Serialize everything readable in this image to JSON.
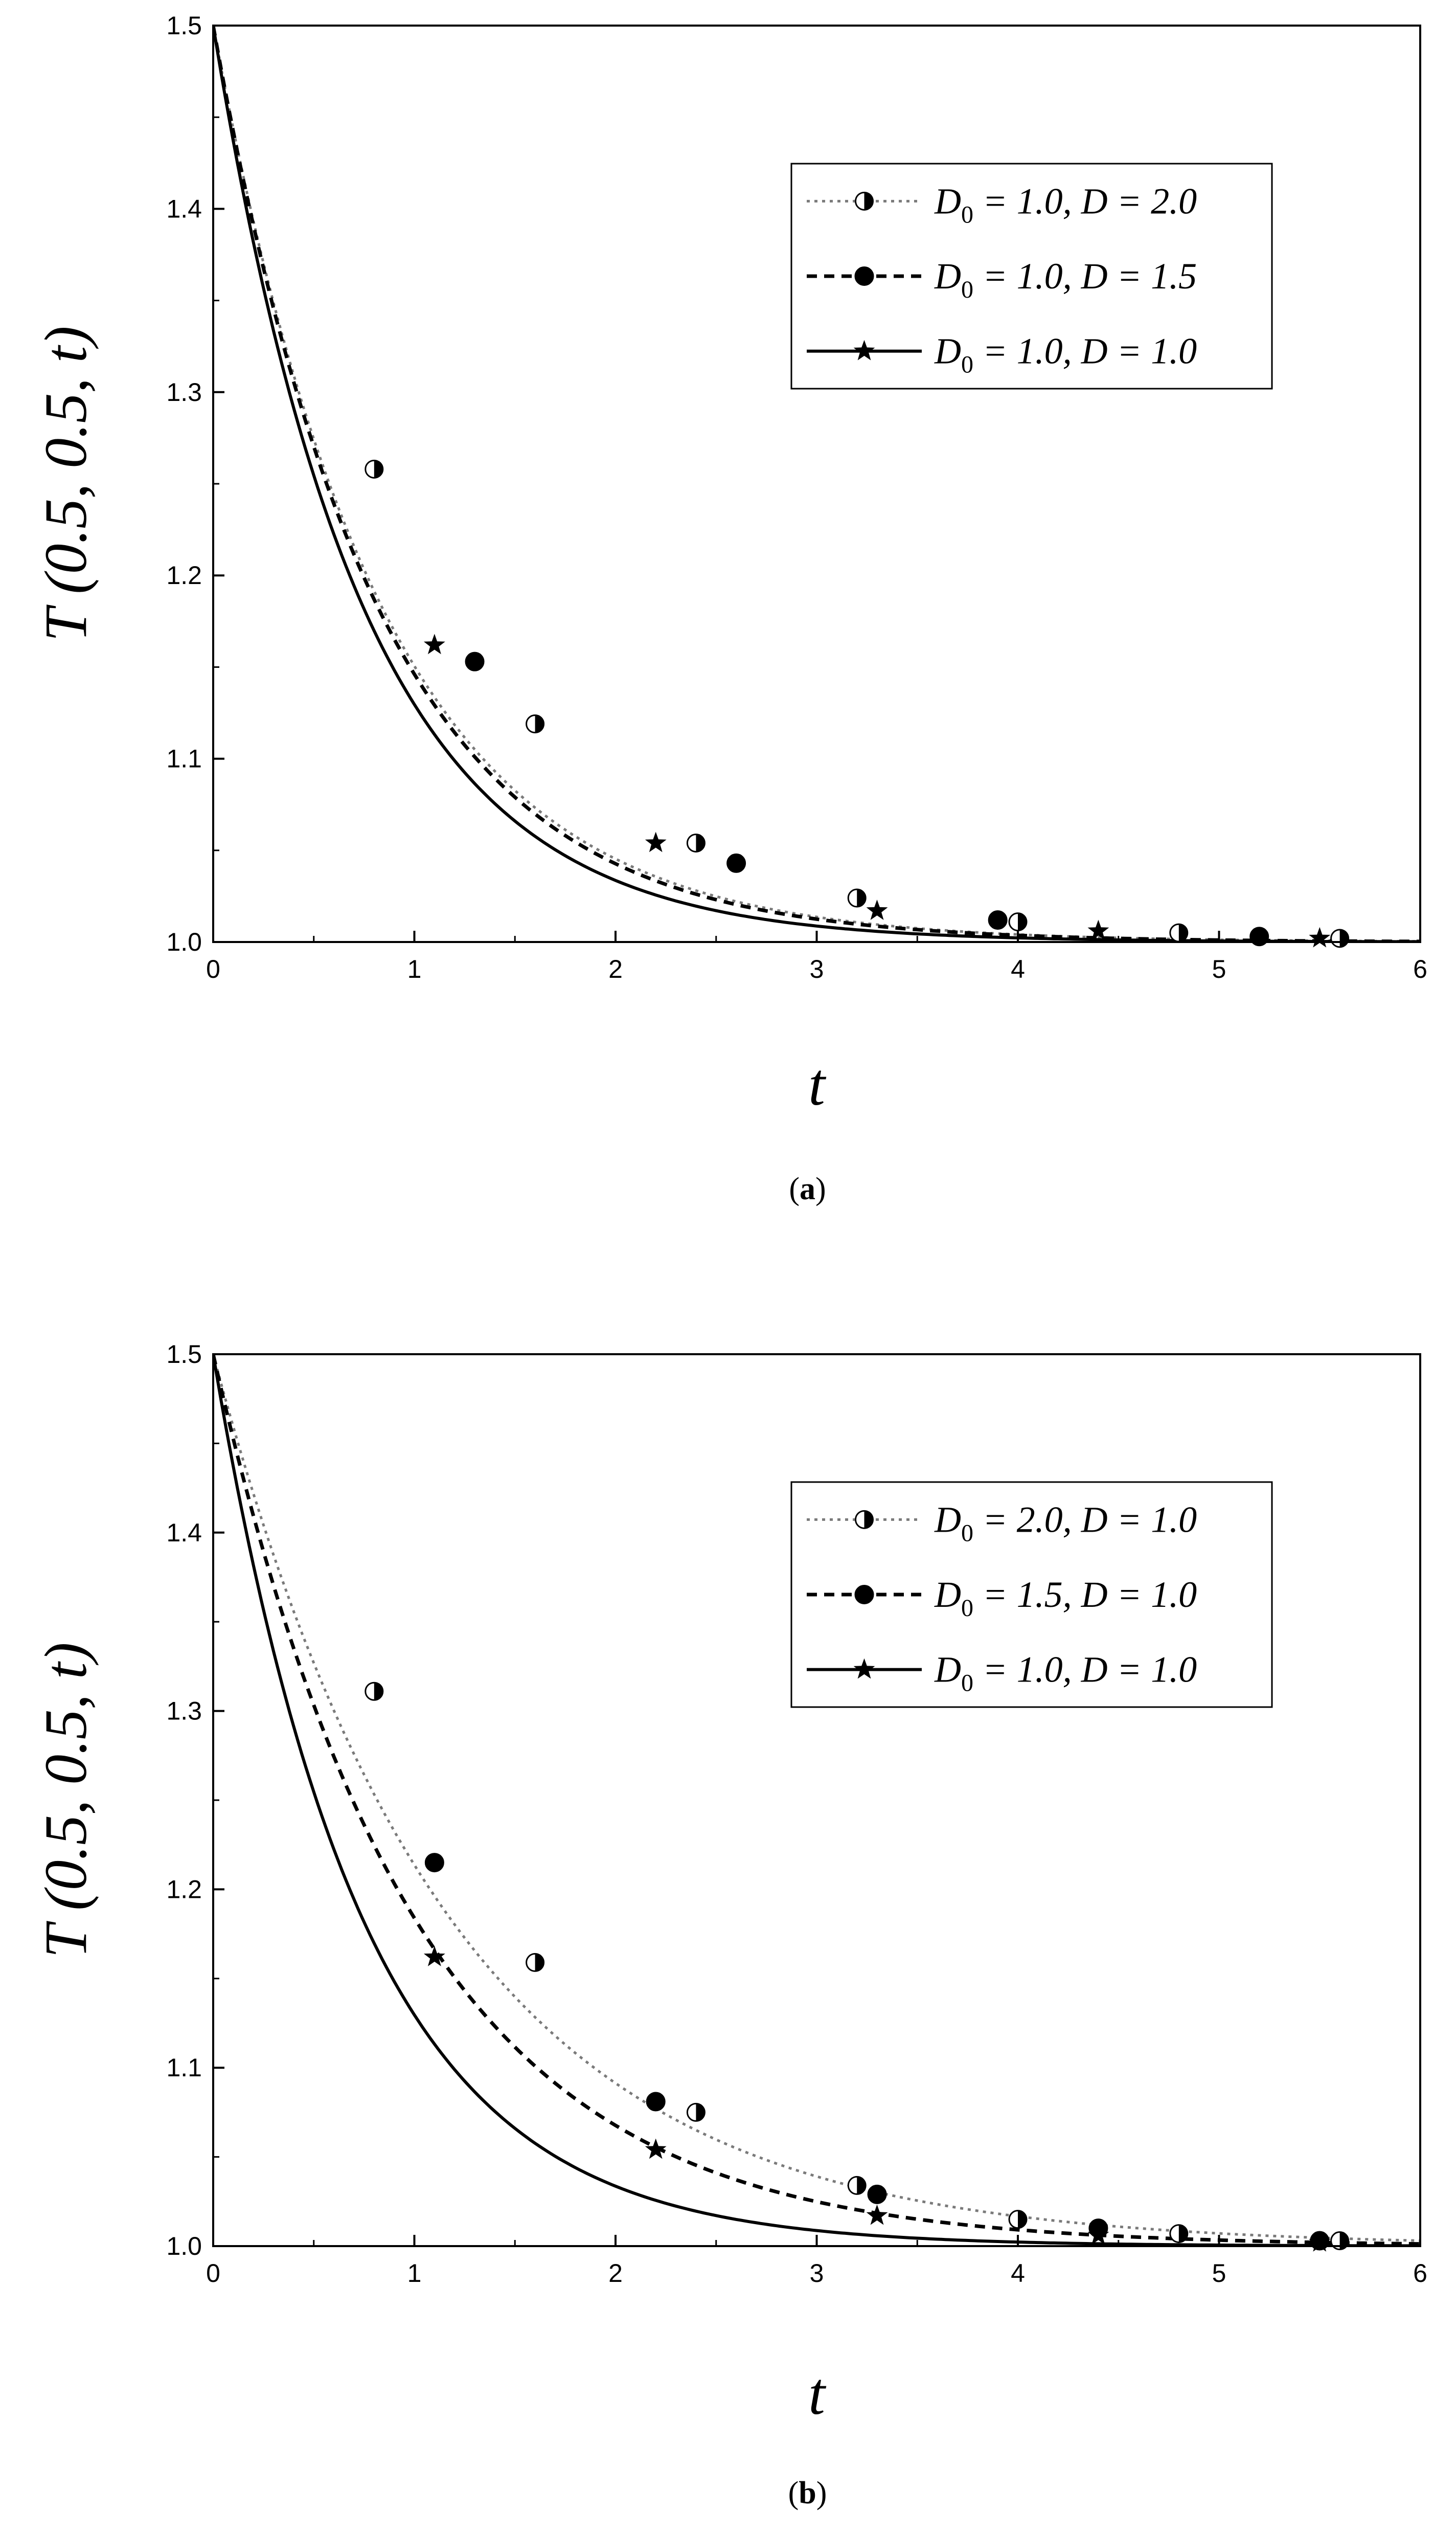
{
  "chart_data": [
    {
      "type": "line",
      "panel_label": "(a)",
      "xlabel": "t",
      "ylabel": "T (0.5, 0.5, t)",
      "xlim": [
        0,
        6
      ],
      "ylim": [
        1.0,
        1.5
      ],
      "xticks": [
        "0",
        "1",
        "2",
        "3",
        "4",
        "5",
        "6"
      ],
      "yticks": [
        "1.0",
        "1.1",
        "1.2",
        "1.3",
        "1.4",
        "1.5"
      ],
      "grid": false,
      "legend_position": "top-right",
      "series": [
        {
          "name": "D0 = 1.0, D = 2.0",
          "legend": {
            "pre": "D",
            "sub": "0",
            "post": " = 1.0, D = 2.0"
          },
          "line_style": "dotted",
          "marker": "half-circle",
          "color": "#7a7a7a",
          "decay_rate": 1.2,
          "markers": [
            {
              "x": 0.8,
              "y": 1.258
            },
            {
              "x": 1.6,
              "y": 1.119
            },
            {
              "x": 2.4,
              "y": 1.054
            },
            {
              "x": 3.2,
              "y": 1.024
            },
            {
              "x": 4.0,
              "y": 1.011
            },
            {
              "x": 4.8,
              "y": 1.005
            },
            {
              "x": 5.6,
              "y": 1.002
            }
          ]
        },
        {
          "name": "D0 = 1.0, D = 1.5",
          "legend": {
            "pre": "D",
            "sub": "0",
            "post": " = 1.0, D = 1.5"
          },
          "line_style": "dashed",
          "marker": "filled-circle",
          "color": "#000000",
          "decay_rate": 1.23,
          "markers": [
            {
              "x": 1.3,
              "y": 1.153
            },
            {
              "x": 2.6,
              "y": 1.043
            },
            {
              "x": 3.9,
              "y": 1.012
            },
            {
              "x": 5.2,
              "y": 1.003
            }
          ]
        },
        {
          "name": "D0 = 1.0, D = 1.0",
          "legend": {
            "pre": "D",
            "sub": "0",
            "post": " = 1.0, D = 1.0"
          },
          "line_style": "solid",
          "marker": "star",
          "color": "#000000",
          "decay_rate": 1.35,
          "markers": [
            {
              "x": 1.1,
              "y": 1.162
            },
            {
              "x": 2.2,
              "y": 1.054
            },
            {
              "x": 3.3,
              "y": 1.017
            },
            {
              "x": 4.4,
              "y": 1.006
            },
            {
              "x": 5.5,
              "y": 1.002
            }
          ]
        }
      ]
    },
    {
      "type": "line",
      "panel_label": "(b)",
      "xlabel": "t",
      "ylabel": "T (0.5, 0.5, t)",
      "xlim": [
        0,
        6
      ],
      "ylim": [
        1.0,
        1.5
      ],
      "xticks": [
        "0",
        "1",
        "2",
        "3",
        "4",
        "5",
        "6"
      ],
      "yticks": [
        "1.0",
        "1.1",
        "1.2",
        "1.3",
        "1.4",
        "1.5"
      ],
      "grid": false,
      "legend_position": "top-right",
      "series": [
        {
          "name": "D0 = 2.0, D = 1.0",
          "legend": {
            "pre": "D",
            "sub": "0",
            "post": " = 2.0, D = 1.0"
          },
          "line_style": "dotted",
          "marker": "half-circle",
          "color": "#7a7a7a",
          "decay_rate": 0.85,
          "markers": [
            {
              "x": 0.8,
              "y": 1.311
            },
            {
              "x": 1.6,
              "y": 1.159
            },
            {
              "x": 2.4,
              "y": 1.075
            },
            {
              "x": 3.2,
              "y": 1.034
            },
            {
              "x": 4.0,
              "y": 1.015
            },
            {
              "x": 4.8,
              "y": 1.007
            },
            {
              "x": 5.6,
              "y": 1.003
            }
          ]
        },
        {
          "name": "D0 = 1.5, D = 1.0",
          "legend": {
            "pre": "D",
            "sub": "0",
            "post": " = 1.5, D = 1.0"
          },
          "line_style": "dashed",
          "marker": "filled-circle",
          "color": "#000000",
          "decay_rate": 1.0,
          "markers": [
            {
              "x": 1.1,
              "y": 1.215
            },
            {
              "x": 2.2,
              "y": 1.081
            },
            {
              "x": 3.3,
              "y": 1.029
            },
            {
              "x": 4.4,
              "y": 1.01
            },
            {
              "x": 5.5,
              "y": 1.003
            }
          ]
        },
        {
          "name": "D0 = 1.0, D = 1.0",
          "legend": {
            "pre": "D",
            "sub": "0",
            "post": " = 1.0, D = 1.0"
          },
          "line_style": "solid",
          "marker": "star",
          "color": "#000000",
          "decay_rate": 1.35,
          "markers": [
            {
              "x": 1.1,
              "y": 1.162
            },
            {
              "x": 2.2,
              "y": 1.054
            },
            {
              "x": 3.3,
              "y": 1.017
            },
            {
              "x": 4.4,
              "y": 1.006
            },
            {
              "x": 5.5,
              "y": 1.002
            }
          ]
        }
      ]
    }
  ]
}
